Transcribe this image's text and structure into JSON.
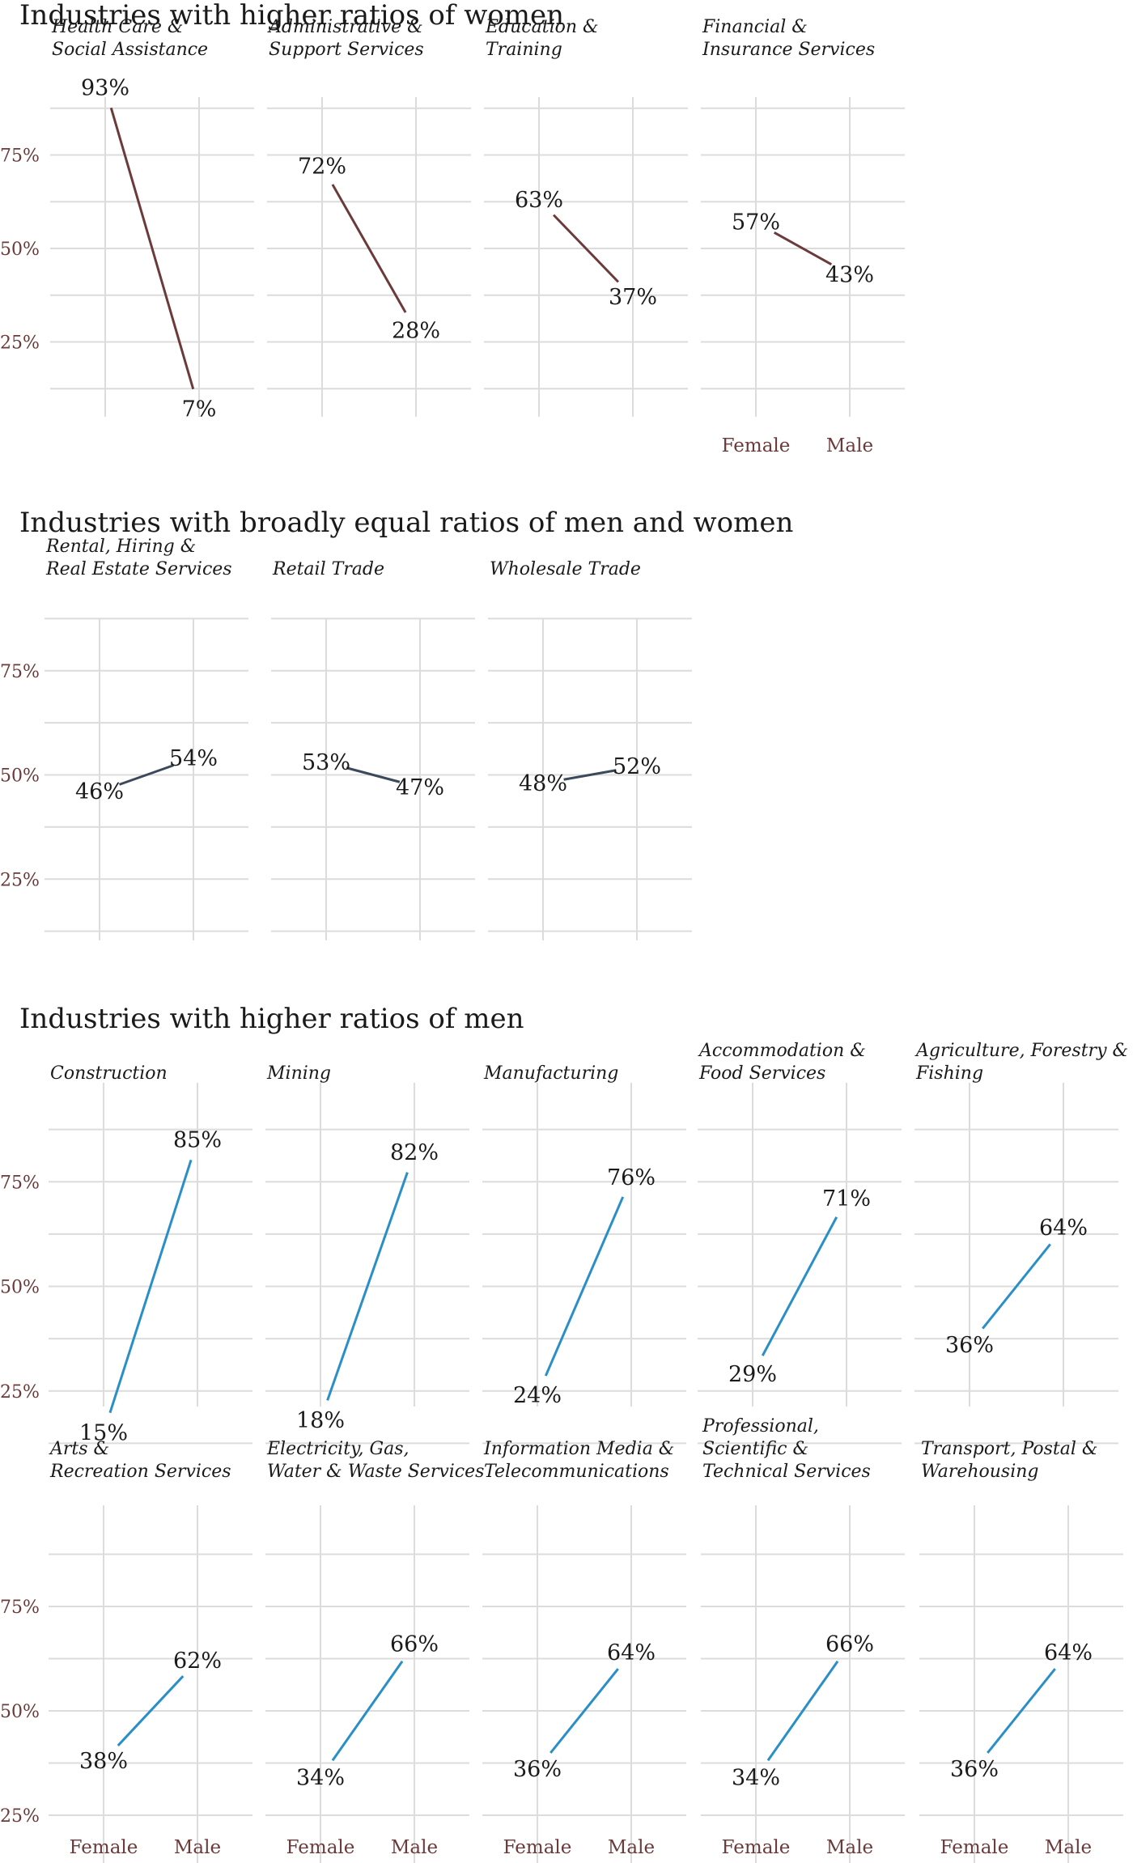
{
  "chart_data": {
    "type": "line",
    "x_categories": [
      "Female",
      "Male"
    ],
    "y_ticks": [
      "25%",
      "50%",
      "75%"
    ],
    "ylim": [
      0,
      100
    ],
    "grid": true,
    "colors": {
      "women_majority": "#6b3a3a",
      "balanced": "#3b4a5a",
      "men_majority": "#2a8fc7"
    },
    "sections": [
      {
        "title": "Industries with higher ratios of women",
        "group": "women_majority",
        "facets": [
          {
            "name": "Health Care & Social Assistance",
            "lines": [
              "Health Care &",
              "Social Assistance"
            ],
            "female": 93,
            "male": 7
          },
          {
            "name": "Administrative & Support Services",
            "lines": [
              "Administrative &",
              "Support Services"
            ],
            "female": 72,
            "male": 28
          },
          {
            "name": "Education & Training",
            "lines": [
              "Education &",
              "Training"
            ],
            "female": 63,
            "male": 37
          },
          {
            "name": "Financial & Insurance Services",
            "lines": [
              "Financial &",
              "Insurance Services"
            ],
            "female": 57,
            "male": 43
          }
        ]
      },
      {
        "title": "Industries with broadly equal ratios of men and women",
        "group": "balanced",
        "facets": [
          {
            "name": "Rental, Hiring & Real Estate Services",
            "lines": [
              "Rental, Hiring &",
              "Real Estate Services"
            ],
            "female": 46,
            "male": 54
          },
          {
            "name": "Retail Trade",
            "lines": [
              "Retail Trade"
            ],
            "female": 53,
            "male": 47
          },
          {
            "name": "Wholesale Trade",
            "lines": [
              "Wholesale Trade"
            ],
            "female": 48,
            "male": 52
          }
        ]
      },
      {
        "title": "Industries with higher ratios of men",
        "group": "men_majority",
        "facets": [
          {
            "name": "Construction",
            "lines": [
              "Construction"
            ],
            "female": 15,
            "male": 85
          },
          {
            "name": "Mining",
            "lines": [
              "Mining"
            ],
            "female": 18,
            "male": 82
          },
          {
            "name": "Manufacturing",
            "lines": [
              "Manufacturing"
            ],
            "female": 24,
            "male": 76
          },
          {
            "name": "Accommodation & Food Services",
            "lines": [
              "Accommodation &",
              "Food Services"
            ],
            "female": 29,
            "male": 71
          },
          {
            "name": "Agriculture, Forestry & Fishing",
            "lines": [
              "Agriculture, Forestry &",
              "Fishing"
            ],
            "female": 36,
            "male": 64
          },
          {
            "name": "Arts & Recreation Services",
            "lines": [
              "Arts &",
              "Recreation Services"
            ],
            "female": 38,
            "male": 62
          },
          {
            "name": "Electricity, Gas, Water & Waste Services",
            "lines": [
              "Electricity, Gas,",
              "Water & Waste Services"
            ],
            "female": 34,
            "male": 66
          },
          {
            "name": "Information Media & Telecommunications",
            "lines": [
              "Information Media &",
              "Telecommunications"
            ],
            "female": 36,
            "male": 64
          },
          {
            "name": "Professional, Scientific & Technical Services",
            "lines": [
              "Professional,",
              "Scientific &",
              "Technical Services"
            ],
            "female": 34,
            "male": 66
          },
          {
            "name": "Transport, Postal & Warehousing",
            "lines": [
              "Transport, Postal &",
              "Warehousing"
            ],
            "female": 36,
            "male": 64
          }
        ]
      }
    ]
  }
}
